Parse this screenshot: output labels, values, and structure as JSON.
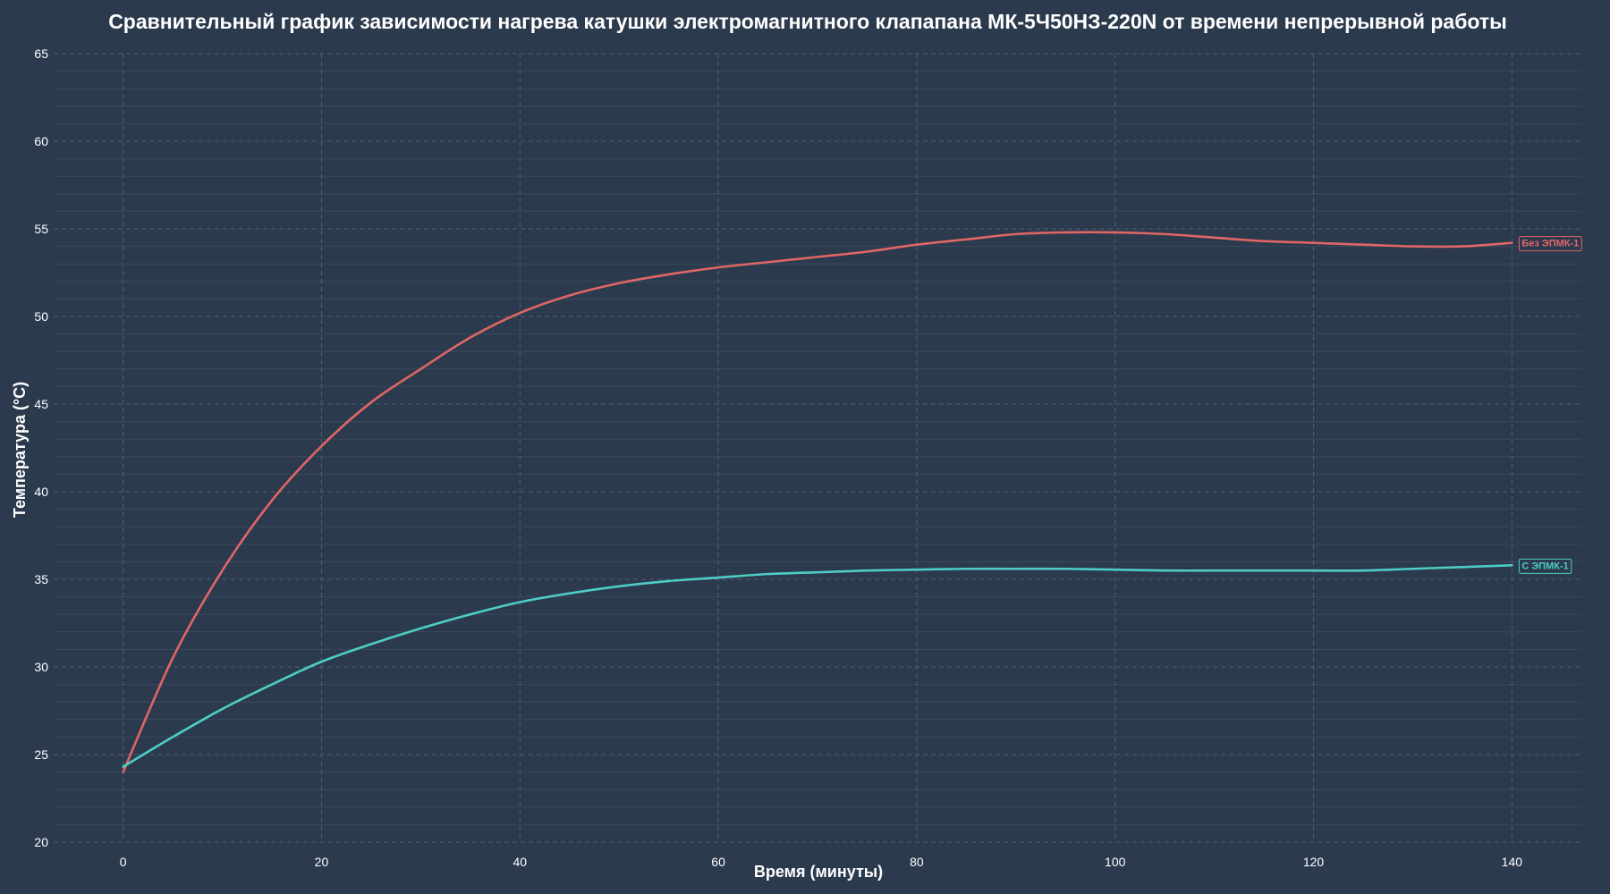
{
  "chart_data": {
    "type": "line",
    "title": "Сравнительный график зависимости нагрева катушки электромагнитного клапапана МК-5Ч50НЗ-220N от времени непрерывной работы",
    "xlabel": "Время (минуты)",
    "ylabel": "Температура (°C)",
    "xlim": [
      -7,
      147
    ],
    "ylim": [
      20,
      65
    ],
    "x_ticks": [
      0,
      20,
      40,
      60,
      80,
      100,
      120,
      140
    ],
    "y_ticks": [
      20,
      25,
      30,
      35,
      40,
      45,
      50,
      55,
      60,
      65
    ],
    "y_minor_step": 1,
    "grid": true,
    "legend": "end-of-line labels",
    "x": [
      0,
      5,
      10,
      15,
      20,
      25,
      30,
      35,
      40,
      45,
      50,
      55,
      60,
      65,
      70,
      75,
      80,
      85,
      90,
      95,
      100,
      105,
      110,
      115,
      120,
      125,
      130,
      135,
      140
    ],
    "series": [
      {
        "name": "Без ЭПМК-1",
        "color": "#e06666",
        "values": [
          24.0,
          30.5,
          35.5,
          39.5,
          42.6,
          45.1,
          47.0,
          48.8,
          50.2,
          51.2,
          51.9,
          52.4,
          52.8,
          53.1,
          53.4,
          53.7,
          54.1,
          54.4,
          54.7,
          54.8,
          54.8,
          54.7,
          54.5,
          54.3,
          54.2,
          54.1,
          54.0,
          54.0,
          54.2
        ]
      },
      {
        "name": "С ЭПМК-1",
        "color": "#4ecdc4",
        "values": [
          24.3,
          26.0,
          27.6,
          29.0,
          30.3,
          31.3,
          32.2,
          33.0,
          33.7,
          34.2,
          34.6,
          34.9,
          35.1,
          35.3,
          35.4,
          35.5,
          35.55,
          35.6,
          35.6,
          35.6,
          35.55,
          35.5,
          35.5,
          35.5,
          35.5,
          35.5,
          35.6,
          35.7,
          35.8
        ]
      }
    ]
  }
}
